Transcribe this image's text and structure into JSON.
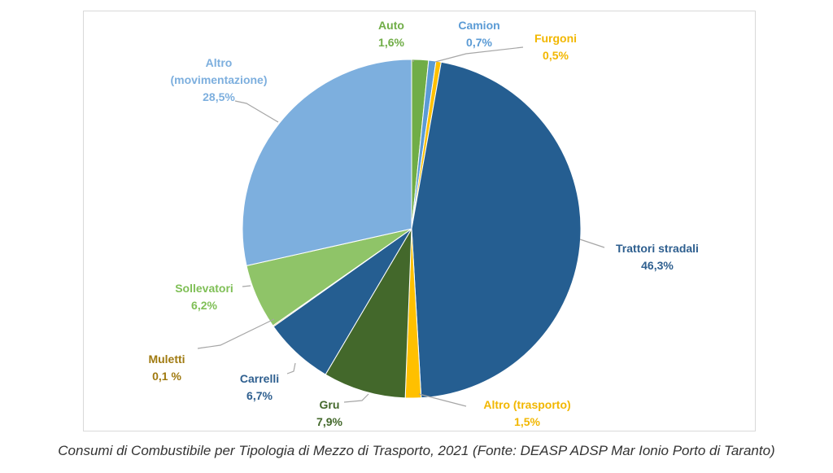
{
  "caption": "Consumi di Combustibile per Tipologia di Mezzo di Trasporto, 2021 (Fonte: DEASP ADSP Mar Ionio Porto di Taranto)",
  "chart_data": {
    "type": "pie",
    "title": "",
    "slices": [
      {
        "label": "Auto",
        "value": 1.6,
        "value_label": "1,6%",
        "color": "#70ad47"
      },
      {
        "label": "Camion",
        "value": 0.7,
        "value_label": "0,7%",
        "color": "#5b9bd5"
      },
      {
        "label": "Furgoni",
        "value": 0.5,
        "value_label": "0,5%",
        "color": "#ffc000"
      },
      {
        "label": "Trattori stradali",
        "value": 46.3,
        "value_label": "46,3%",
        "color": "#255e91"
      },
      {
        "label": "Altro (trasporto)",
        "value": 1.5,
        "value_label": "1,5%",
        "color": "#ffc000"
      },
      {
        "label": "Gru",
        "value": 7.9,
        "value_label": "7,9%",
        "color": "#43682b"
      },
      {
        "label": "Carrelli",
        "value": 6.7,
        "value_label": "6,7%",
        "color": "#255e91"
      },
      {
        "label": "Muletti",
        "value": 0.1,
        "value_label": "0,1 %",
        "color": "#bf8f00"
      },
      {
        "label": "Sollevatori",
        "value": 6.2,
        "value_label": "6,2%",
        "color": "#8fc468"
      },
      {
        "label": "Altro (movimentazione)",
        "value": 28.5,
        "value_label": "28,5%",
        "color": "#7dafde"
      }
    ],
    "label_colors": {
      "Auto": "#70ad47",
      "Camion": "#5b9bd5",
      "Furgoni": "#f2b700",
      "Trattori stradali": "#2e5f8f",
      "Altro (trasporto)": "#f2b700",
      "Gru": "#43682b",
      "Carrelli": "#2e5f8f",
      "Muletti": "#a07a10",
      "Sollevatori": "#7fbf56",
      "Altro (movimentazione)": "#7dafde"
    }
  }
}
